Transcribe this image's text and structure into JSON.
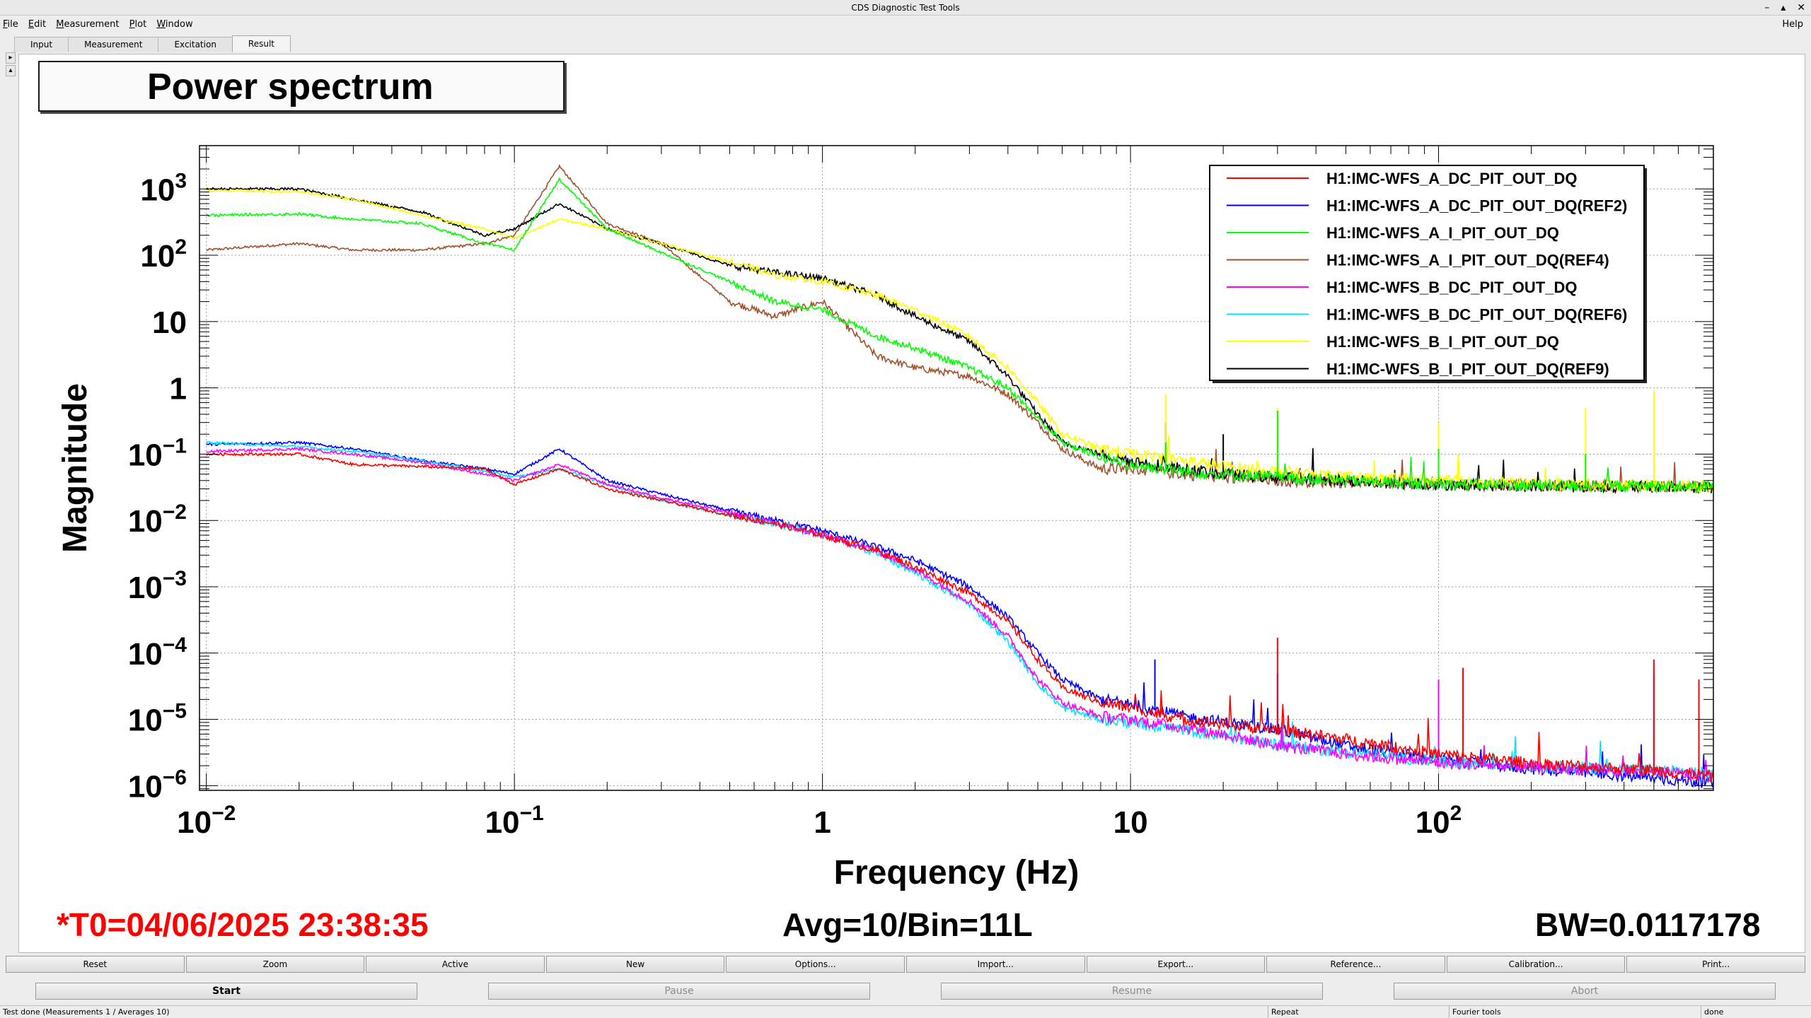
{
  "window": {
    "title": "CDS Diagnostic Test Tools",
    "controls": [
      "–",
      "▴",
      "✕"
    ]
  },
  "menu": {
    "items": [
      {
        "label": "File",
        "u": "F",
        "rest": "ile"
      },
      {
        "label": "Edit",
        "u": "E",
        "rest": "dit"
      },
      {
        "label": "Measurement",
        "u": "M",
        "rest": "easurement"
      },
      {
        "label": "Plot",
        "u": "P",
        "rest": "lot"
      },
      {
        "label": "Window",
        "u": "W",
        "rest": "indow"
      }
    ],
    "help": "Help"
  },
  "tabs": [
    "Input",
    "Measurement",
    "Excitation",
    "Result"
  ],
  "active_tab": "Result",
  "plot_title": "Power spectrum",
  "footer": {
    "t0": "*T0=04/06/2025 23:38:35",
    "avg": "Avg=10/Bin=11L",
    "bw": "BW=0.0117178"
  },
  "colors": {
    "t0": "#ff0000",
    "accent": "#000000"
  },
  "chart_data": {
    "type": "line",
    "title": "Power spectrum",
    "xlabel": "Frequency (Hz)",
    "ylabel": "Magnitude",
    "x_scale": "log",
    "y_scale": "log",
    "xlim": [
      0.0095,
      780
    ],
    "ylim": [
      8.5e-07,
      4500.0
    ],
    "x_ticks": [
      {
        "value": 0.01,
        "base": "10",
        "exp": "−2"
      },
      {
        "value": 0.1,
        "base": "10",
        "exp": "−1"
      },
      {
        "value": 1,
        "base": "1",
        "exp": ""
      },
      {
        "value": 10,
        "base": "10",
        "exp": ""
      },
      {
        "value": 100,
        "base": "10",
        "exp": "2"
      }
    ],
    "y_ticks": [
      {
        "value": 1000.0,
        "base": "10",
        "exp": "3"
      },
      {
        "value": 100.0,
        "base": "10",
        "exp": "2"
      },
      {
        "value": 10,
        "base": "10",
        "exp": ""
      },
      {
        "value": 1,
        "base": "1",
        "exp": ""
      },
      {
        "value": 0.1,
        "base": "10",
        "exp": "−1"
      },
      {
        "value": 0.01,
        "base": "10",
        "exp": "−2"
      },
      {
        "value": 0.001,
        "base": "10",
        "exp": "−3"
      },
      {
        "value": 0.0001,
        "base": "10",
        "exp": "−4"
      },
      {
        "value": 1e-05,
        "base": "10",
        "exp": "−5"
      },
      {
        "value": 1e-06,
        "base": "10",
        "exp": "−6"
      }
    ],
    "grid": true,
    "legend_position": "top-right",
    "series": [
      {
        "name": "H1:IMC-WFS_A_DC_PIT_OUT_DQ",
        "color": "#ff0000",
        "x": [
          0.01,
          0.02,
          0.03,
          0.05,
          0.08,
          0.1,
          0.14,
          0.2,
          0.3,
          0.5,
          0.7,
          1,
          1.5,
          2,
          3,
          4,
          5,
          6,
          8,
          10,
          15,
          20,
          30,
          50,
          100,
          200,
          500,
          780
        ],
        "y": [
          0.1,
          0.1,
          0.07,
          0.065,
          0.06,
          0.035,
          0.06,
          0.03,
          0.02,
          0.012,
          0.009,
          0.006,
          0.0035,
          0.002,
          0.0008,
          0.0003,
          8e-05,
          3e-05,
          1.8e-05,
          1.5e-05,
          1e-05,
          8.5e-06,
          7e-06,
          5e-06,
          3e-06,
          2.2e-06,
          1.7e-06,
          1.4e-06
        ],
        "peaks": [
          [
            30,
            0.00017
          ],
          [
            120,
            6e-05
          ],
          [
            500,
            8e-05
          ],
          [
            700,
            4e-05
          ]
        ]
      },
      {
        "name": "H1:IMC-WFS_A_DC_PIT_OUT_DQ(REF2)",
        "color": "#0000ff",
        "x": [
          0.01,
          0.02,
          0.03,
          0.05,
          0.08,
          0.1,
          0.14,
          0.2,
          0.3,
          0.5,
          0.7,
          1,
          1.5,
          2,
          3,
          4,
          5,
          6,
          8,
          10,
          15,
          20,
          30,
          50,
          100,
          200,
          500,
          780
        ],
        "y": [
          0.14,
          0.15,
          0.12,
          0.08,
          0.06,
          0.05,
          0.12,
          0.04,
          0.025,
          0.014,
          0.01,
          0.007,
          0.004,
          0.0025,
          0.001,
          0.00035,
          0.0001,
          4e-05,
          2e-05,
          1.7e-05,
          1.1e-05,
          9e-06,
          7e-06,
          4e-06,
          2.5e-06,
          1.8e-06,
          1.3e-06,
          1.1e-06
        ],
        "peaks": [
          [
            12,
            8e-05
          ],
          [
            30,
            5e-05
          ],
          [
            120,
            3e-05
          ]
        ]
      },
      {
        "name": "H1:IMC-WFS_A_I_PIT_OUT_DQ",
        "color": "#00ff00",
        "x": [
          0.01,
          0.02,
          0.03,
          0.05,
          0.08,
          0.1,
          0.14,
          0.2,
          0.3,
          0.5,
          0.7,
          1,
          1.5,
          2,
          3,
          4,
          5,
          6,
          8,
          10,
          15,
          20,
          30,
          50,
          100,
          200,
          500,
          780
        ],
        "y": [
          400,
          420,
          350,
          300,
          150,
          120,
          1400,
          250,
          110,
          40,
          20,
          15,
          6,
          4,
          2,
          1,
          0.35,
          0.15,
          0.09,
          0.07,
          0.055,
          0.05,
          0.045,
          0.04,
          0.035,
          0.034,
          0.033,
          0.032
        ],
        "peaks": [
          [
            13,
            0.15
          ],
          [
            30,
            0.45
          ],
          [
            100,
            0.12
          ],
          [
            300,
            0.1
          ]
        ]
      },
      {
        "name": "H1:IMC-WFS_A_I_PIT_OUT_DQ(REF4)",
        "color": "#a0522d",
        "x": [
          0.01,
          0.02,
          0.03,
          0.05,
          0.08,
          0.1,
          0.14,
          0.2,
          0.3,
          0.5,
          0.7,
          1,
          1.5,
          2,
          3,
          4,
          5,
          6,
          8,
          10,
          15,
          20,
          30,
          50,
          100,
          200,
          500,
          780
        ],
        "y": [
          120,
          150,
          120,
          120,
          150,
          200,
          2200,
          300,
          150,
          20,
          12,
          20,
          3,
          2,
          1.5,
          0.8,
          0.3,
          0.12,
          0.06,
          0.06,
          0.05,
          0.045,
          0.04,
          0.038,
          0.035,
          0.034,
          0.033,
          0.032
        ],
        "peaks": []
      },
      {
        "name": "H1:IMC-WFS_B_DC_PIT_OUT_DQ",
        "color": "#ff00ff",
        "x": [
          0.01,
          0.02,
          0.03,
          0.05,
          0.08,
          0.1,
          0.14,
          0.2,
          0.3,
          0.5,
          0.7,
          1,
          1.5,
          2,
          3,
          4,
          5,
          6,
          8,
          10,
          15,
          20,
          30,
          50,
          100,
          200,
          500,
          780
        ],
        "y": [
          0.11,
          0.12,
          0.1,
          0.075,
          0.05,
          0.04,
          0.07,
          0.035,
          0.022,
          0.013,
          0.009,
          0.006,
          0.0035,
          0.0018,
          0.0006,
          0.00018,
          4e-05,
          1.8e-05,
          1.1e-05,
          1e-05,
          7.5e-06,
          6e-06,
          4e-06,
          3e-06,
          2.2e-06,
          1.9e-06,
          1.6e-06,
          1.4e-06
        ],
        "peaks": [
          [
            100,
            4e-05
          ],
          [
            500,
            5e-05
          ]
        ]
      },
      {
        "name": "H1:IMC-WFS_B_DC_PIT_OUT_DQ(REF6)",
        "color": "#00e5ff",
        "x": [
          0.01,
          0.02,
          0.03,
          0.05,
          0.08,
          0.1,
          0.14,
          0.2,
          0.3,
          0.5,
          0.7,
          1,
          1.5,
          2,
          3,
          4,
          5,
          6,
          8,
          10,
          15,
          20,
          30,
          50,
          100,
          200,
          500,
          780
        ],
        "y": [
          0.15,
          0.13,
          0.11,
          0.08,
          0.055,
          0.045,
          0.06,
          0.035,
          0.02,
          0.012,
          0.009,
          0.006,
          0.0032,
          0.0016,
          0.00055,
          0.00015,
          3.5e-05,
          1.5e-05,
          1e-05,
          9e-06,
          7e-06,
          5.5e-06,
          4.2e-06,
          3.2e-06,
          2.3e-06,
          2e-06,
          1.7e-06,
          1.5e-06
        ],
        "peaks": []
      },
      {
        "name": "H1:IMC-WFS_B_I_PIT_OUT_DQ",
        "color": "#ffff00",
        "x": [
          0.01,
          0.02,
          0.03,
          0.05,
          0.08,
          0.1,
          0.14,
          0.2,
          0.3,
          0.5,
          0.7,
          1,
          1.5,
          2,
          3,
          4,
          5,
          6,
          8,
          10,
          15,
          20,
          30,
          50,
          100,
          200,
          500,
          780
        ],
        "y": [
          950,
          900,
          700,
          400,
          250,
          180,
          350,
          250,
          150,
          80,
          50,
          40,
          25,
          15,
          6,
          2,
          0.6,
          0.2,
          0.12,
          0.1,
          0.08,
          0.065,
          0.055,
          0.045,
          0.04,
          0.036,
          0.034,
          0.033
        ],
        "peaks": [
          [
            13,
            0.8
          ],
          [
            30,
            0.5
          ],
          [
            100,
            0.3
          ],
          [
            300,
            0.5
          ],
          [
            500,
            0.9
          ]
        ]
      },
      {
        "name": "H1:IMC-WFS_B_I_PIT_OUT_DQ(REF9)",
        "color": "#000000",
        "x": [
          0.01,
          0.02,
          0.03,
          0.05,
          0.08,
          0.1,
          0.14,
          0.2,
          0.3,
          0.5,
          0.7,
          1,
          1.5,
          2,
          3,
          4,
          5,
          6,
          8,
          10,
          15,
          20,
          30,
          50,
          100,
          200,
          500,
          780
        ],
        "y": [
          1000,
          1000,
          700,
          450,
          200,
          250,
          600,
          250,
          150,
          70,
          55,
          45,
          25,
          12,
          5,
          1.5,
          0.4,
          0.15,
          0.1,
          0.08,
          0.06,
          0.05,
          0.045,
          0.04,
          0.035,
          0.033,
          0.032,
          0.031
        ],
        "peaks": [
          [
            13,
            0.3
          ],
          [
            20,
            0.2
          ]
        ]
      }
    ]
  },
  "action_buttons": [
    "Reset",
    "Zoom",
    "Active",
    "New",
    "Options...",
    "Import...",
    "Export...",
    "Reference...",
    "Calibration...",
    "Print..."
  ],
  "run_buttons": [
    {
      "label": "Start",
      "enabled": true
    },
    {
      "label": "Pause",
      "enabled": false
    },
    {
      "label": "Resume",
      "enabled": false
    },
    {
      "label": "Abort",
      "enabled": false
    }
  ],
  "status": {
    "message": "Test done (Measurements 1 / Averages 10)",
    "mode": "Repeat",
    "tool": "Fourier tools",
    "state": "done"
  }
}
